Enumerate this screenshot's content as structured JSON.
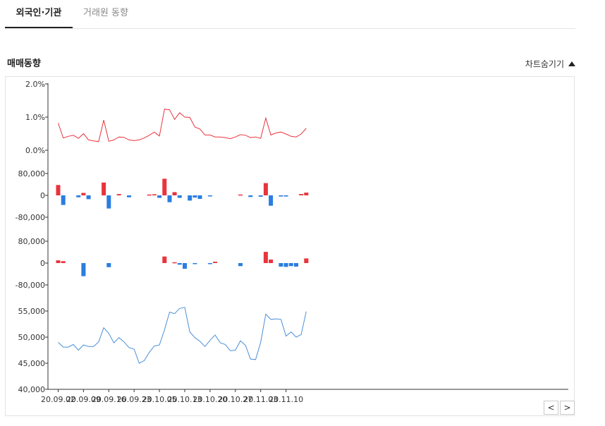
{
  "tabs": [
    {
      "label": "외국인·기관",
      "active": true
    },
    {
      "label": "거래원 동향",
      "active": false
    }
  ],
  "section": {
    "title": "매매동향",
    "toggle_label": "차트숨기기"
  },
  "colors": {
    "up": "#e8343c",
    "down": "#2a7de1",
    "rate_line": "#e8343c",
    "price_line": "#4a8fd8"
  },
  "chart_data": [
    {
      "type": "line",
      "name": "rate",
      "yticks": [
        "2.0%",
        "1.0%",
        "0.0%"
      ],
      "ylim": [
        0,
        2
      ],
      "values": [
        0.82,
        0.37,
        0.42,
        0.45,
        0.36,
        0.5,
        0.31,
        0.28,
        0.26,
        0.91,
        0.27,
        0.31,
        0.4,
        0.39,
        0.31,
        0.29,
        0.31,
        0.37,
        0.45,
        0.55,
        0.43,
        1.24,
        1.22,
        0.93,
        1.13,
        1.0,
        0.99,
        0.7,
        0.64,
        0.46,
        0.46,
        0.4,
        0.4,
        0.38,
        0.35,
        0.4,
        0.47,
        0.45,
        0.38,
        0.4,
        0.36,
        0.97,
        0.46,
        0.52,
        0.55,
        0.49,
        0.42,
        0.4,
        0.49,
        0.66
      ]
    },
    {
      "type": "bar",
      "name": "foreign",
      "yticks": [
        "80,000",
        "0",
        "-80,000"
      ],
      "ylim": [
        -100000,
        100000
      ],
      "values": [
        38000,
        -35000,
        0,
        0,
        -7000,
        9000,
        -14000,
        0,
        0,
        47000,
        -48000,
        0,
        5000,
        0,
        -7000,
        0,
        0,
        0,
        3000,
        4000,
        -9000,
        61000,
        -25000,
        12000,
        -9000,
        0,
        -19000,
        -8000,
        -13000,
        0,
        -3000,
        0,
        0,
        0,
        0,
        0,
        3000,
        0,
        -6000,
        0,
        -5000,
        45000,
        -38000,
        0,
        -4000,
        -4000,
        0,
        0,
        5000,
        10000
      ]
    },
    {
      "type": "bar",
      "name": "institution",
      "yticks": [
        "80,000",
        "0",
        "-80,000"
      ],
      "ylim": [
        -100000,
        100000
      ],
      "values": [
        10000,
        7000,
        0,
        0,
        0,
        -48000,
        0,
        0,
        0,
        0,
        -15000,
        0,
        0,
        0,
        0,
        0,
        0,
        0,
        0,
        0,
        0,
        24000,
        0,
        3000,
        -6000,
        -21000,
        0,
        -3000,
        0,
        0,
        -3000,
        5000,
        0,
        0,
        0,
        0,
        -11000,
        0,
        0,
        0,
        0,
        41000,
        13000,
        0,
        -13000,
        -14000,
        -11000,
        -13000,
        0,
        17000
      ]
    },
    {
      "type": "line",
      "name": "price",
      "yticks": [
        "55,000",
        "50,000",
        "45,000",
        "40,000"
      ],
      "ylim": [
        40000,
        58000
      ],
      "values": [
        49000,
        48100,
        48100,
        48600,
        47500,
        48500,
        48200,
        48200,
        49100,
        51800,
        50700,
        48900,
        49900,
        49100,
        48000,
        47700,
        45000,
        45500,
        47100,
        48300,
        48500,
        51400,
        54800,
        54500,
        55500,
        55700,
        51000,
        49900,
        49200,
        48200,
        49400,
        50400,
        48900,
        48600,
        47400,
        47500,
        49300,
        48400,
        45800,
        45700,
        49000,
        54400,
        53400,
        53500,
        53400,
        50200,
        51000,
        50000,
        50500,
        54900
      ]
    },
    {
      "type": "axis",
      "xticks": [
        "20.09.02",
        "20.09.09",
        "20.09.16",
        "20.09.23",
        "20.10.05",
        "20.10.13",
        "20.10.20",
        "20.10.27",
        "20.11.03",
        "20.11.10"
      ],
      "xtick_index": [
        0,
        5,
        10,
        15,
        20,
        25,
        30,
        35,
        40,
        45
      ]
    }
  ],
  "nav": {
    "prev_label": "<",
    "next_label": ">"
  }
}
